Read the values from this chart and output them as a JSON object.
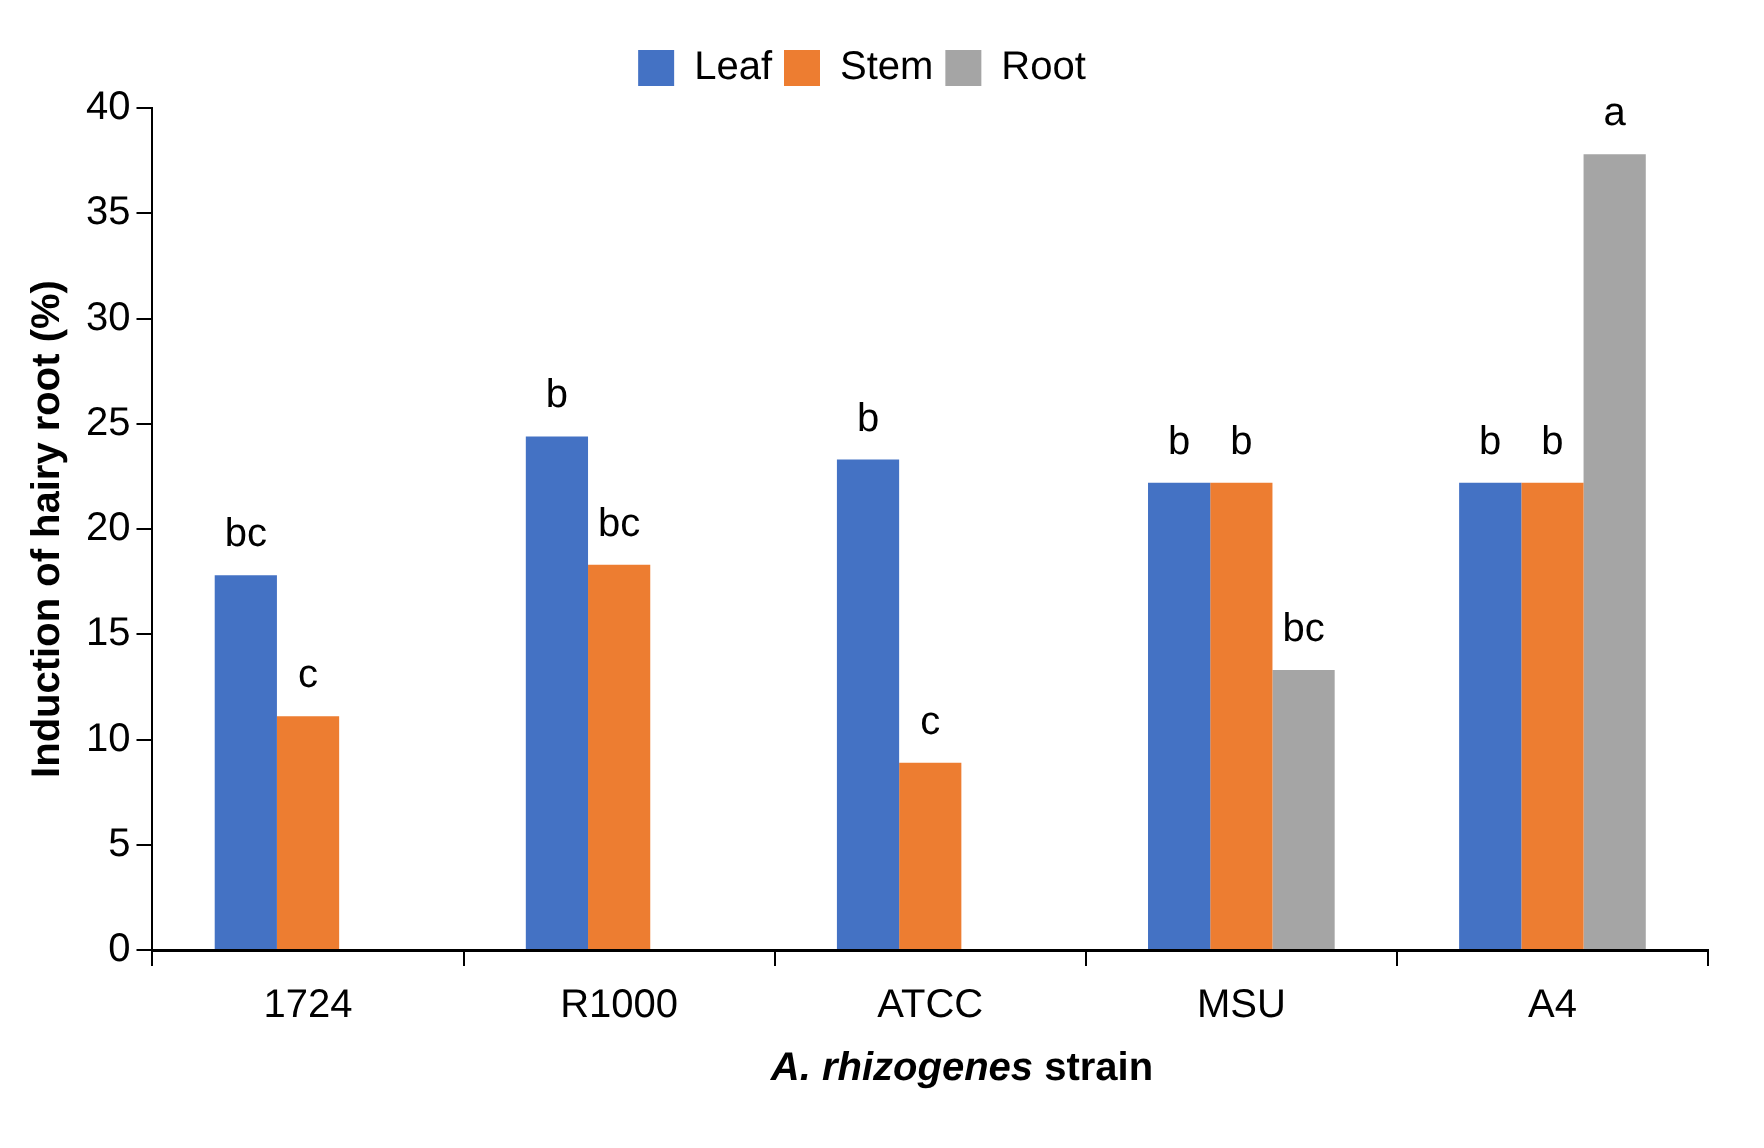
{
  "chart_data": {
    "type": "bar",
    "xlabel": "A. rhizogenes strain",
    "ylabel": "Induction of hairy root (%)",
    "categories": [
      "1724",
      "R1000",
      "ATCC",
      "MSU",
      "A4"
    ],
    "series": [
      {
        "name": "Leaf",
        "color": "#4472c4",
        "values": [
          17.8,
          24.4,
          23.3,
          22.2,
          22.2
        ],
        "value_labels": [
          "bc",
          "b",
          "b",
          "b",
          "b"
        ]
      },
      {
        "name": "Stem",
        "color": "#ed7d31",
        "values": [
          11.1,
          18.3,
          8.9,
          22.2,
          22.2
        ],
        "value_labels": [
          "c",
          "bc",
          "c",
          "b",
          "b"
        ]
      },
      {
        "name": "Root",
        "color": "#a5a5a5",
        "values": [
          null,
          null,
          null,
          13.3,
          37.8
        ],
        "value_labels": [
          null,
          null,
          null,
          "bc",
          "a"
        ]
      }
    ],
    "ylim": [
      0,
      40
    ],
    "yticks": [
      0,
      5,
      10,
      15,
      20,
      25,
      30,
      35,
      40
    ],
    "grid": false,
    "legend": "top"
  }
}
